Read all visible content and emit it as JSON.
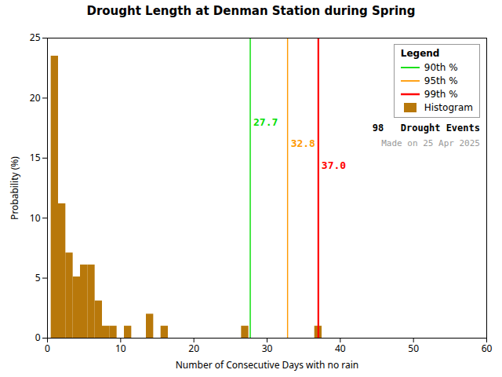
{
  "chart_data": {
    "type": "bar",
    "title": "Drought Length at Denman Station during Spring",
    "xlabel": "Number of Consecutive Days with no rain",
    "ylabel": "Probability (%)",
    "x": [
      1,
      2,
      3,
      4,
      5,
      6,
      7,
      8,
      9,
      10,
      11,
      12,
      13,
      14,
      15,
      16,
      17,
      18,
      19,
      20,
      21,
      22,
      23,
      24,
      25,
      26,
      27,
      28,
      29,
      30,
      31,
      32,
      33,
      34,
      35,
      36,
      37,
      38,
      39,
      40,
      41,
      42,
      43,
      44,
      45,
      46,
      47,
      48,
      49,
      50,
      51,
      52,
      53,
      54,
      55,
      56,
      57,
      58,
      59,
      60
    ],
    "series": [
      {
        "name": "Histogram",
        "type": "bar",
        "color": "#B8780A",
        "values": [
          23.5,
          11.2,
          7.1,
          5.1,
          6.1,
          6.1,
          3.1,
          1.0,
          1.0,
          0.0,
          1.0,
          0.0,
          0.0,
          2.0,
          0.0,
          1.0,
          0.0,
          0.0,
          0.0,
          0.0,
          0.0,
          0.0,
          0.0,
          0.0,
          0.0,
          0.0,
          1.0,
          0.0,
          0.0,
          0.0,
          0.0,
          0.0,
          0.0,
          0.0,
          0.0,
          0.0,
          1.0,
          0.0,
          0.0,
          0.0,
          0.0,
          0.0,
          0.0,
          0.0,
          0.0,
          0.0,
          0.0,
          0.0,
          0.0,
          0.0,
          0.0,
          0.0,
          0.0,
          0.0,
          0.0,
          0.0,
          0.0,
          0.0,
          0.0,
          0.0
        ]
      }
    ],
    "reference_lines": [
      {
        "name": "90th %",
        "value": 27.7,
        "label": "27.7",
        "color": "#00DD00"
      },
      {
        "name": "95th %",
        "value": 32.8,
        "label": "32.8",
        "color": "#FF9900"
      },
      {
        "name": "99th %",
        "value": 37.0,
        "label": "37.0",
        "color": "#FF0000"
      }
    ],
    "annotations": [
      {
        "text": "98   Drought Events"
      },
      {
        "text": "Made on 25 Apr 2025",
        "color": "#999999"
      }
    ],
    "xlim": [
      0,
      60
    ],
    "ylim": [
      0,
      25
    ],
    "xticks": [
      0,
      10,
      20,
      30,
      40,
      50,
      60
    ],
    "yticks": [
      0,
      5,
      10,
      15,
      20,
      25
    ],
    "legend": "upper right",
    "legend_title": "Legend",
    "grid": false
  }
}
